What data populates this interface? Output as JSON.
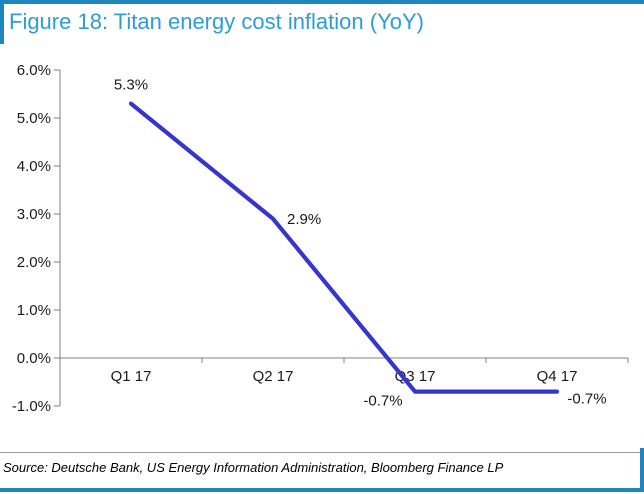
{
  "header": {
    "title": "Figure 18: Titan energy cost inflation (YoY)"
  },
  "footer": {
    "source": "Source: Deutsche Bank, US Energy Information Administration, Bloomberg Finance LP"
  },
  "colors": {
    "accent_blue": "#1e86bd",
    "title_blue": "#2d9dd7",
    "line_blue": "#3535d0",
    "axis_gray": "#808080",
    "text_black": "#1a1a1a"
  },
  "chart_data": {
    "type": "line",
    "title": "Figure 18: Titan energy cost inflation (YoY)",
    "categories": [
      "Q1 17",
      "Q2 17",
      "Q3 17",
      "Q4 17"
    ],
    "series": [
      {
        "name": "Titan energy cost inflation YoY",
        "values": [
          5.3,
          2.9,
          -0.7,
          -0.7
        ]
      }
    ],
    "point_labels": [
      {
        "text": "5.3%",
        "position": "above"
      },
      {
        "text": "2.9%",
        "position": "right"
      },
      {
        "text": "-0.7%",
        "position": "below-left"
      },
      {
        "text": "-0.7%",
        "position": "below-right"
      }
    ],
    "y_ticks": [
      {
        "value": 6,
        "label": "6.0%"
      },
      {
        "value": 5,
        "label": "5.0%"
      },
      {
        "value": 4,
        "label": "4.0%"
      },
      {
        "value": 3,
        "label": "3.0%"
      },
      {
        "value": 2,
        "label": "2.0%"
      },
      {
        "value": 1,
        "label": "1.0%"
      },
      {
        "value": 0,
        "label": "0.0%"
      },
      {
        "value": -1,
        "label": "-1.0%"
      }
    ],
    "ylim": [
      -1,
      6
    ],
    "xlabel": "",
    "ylabel": "",
    "grid": false,
    "legend_position": "none"
  }
}
